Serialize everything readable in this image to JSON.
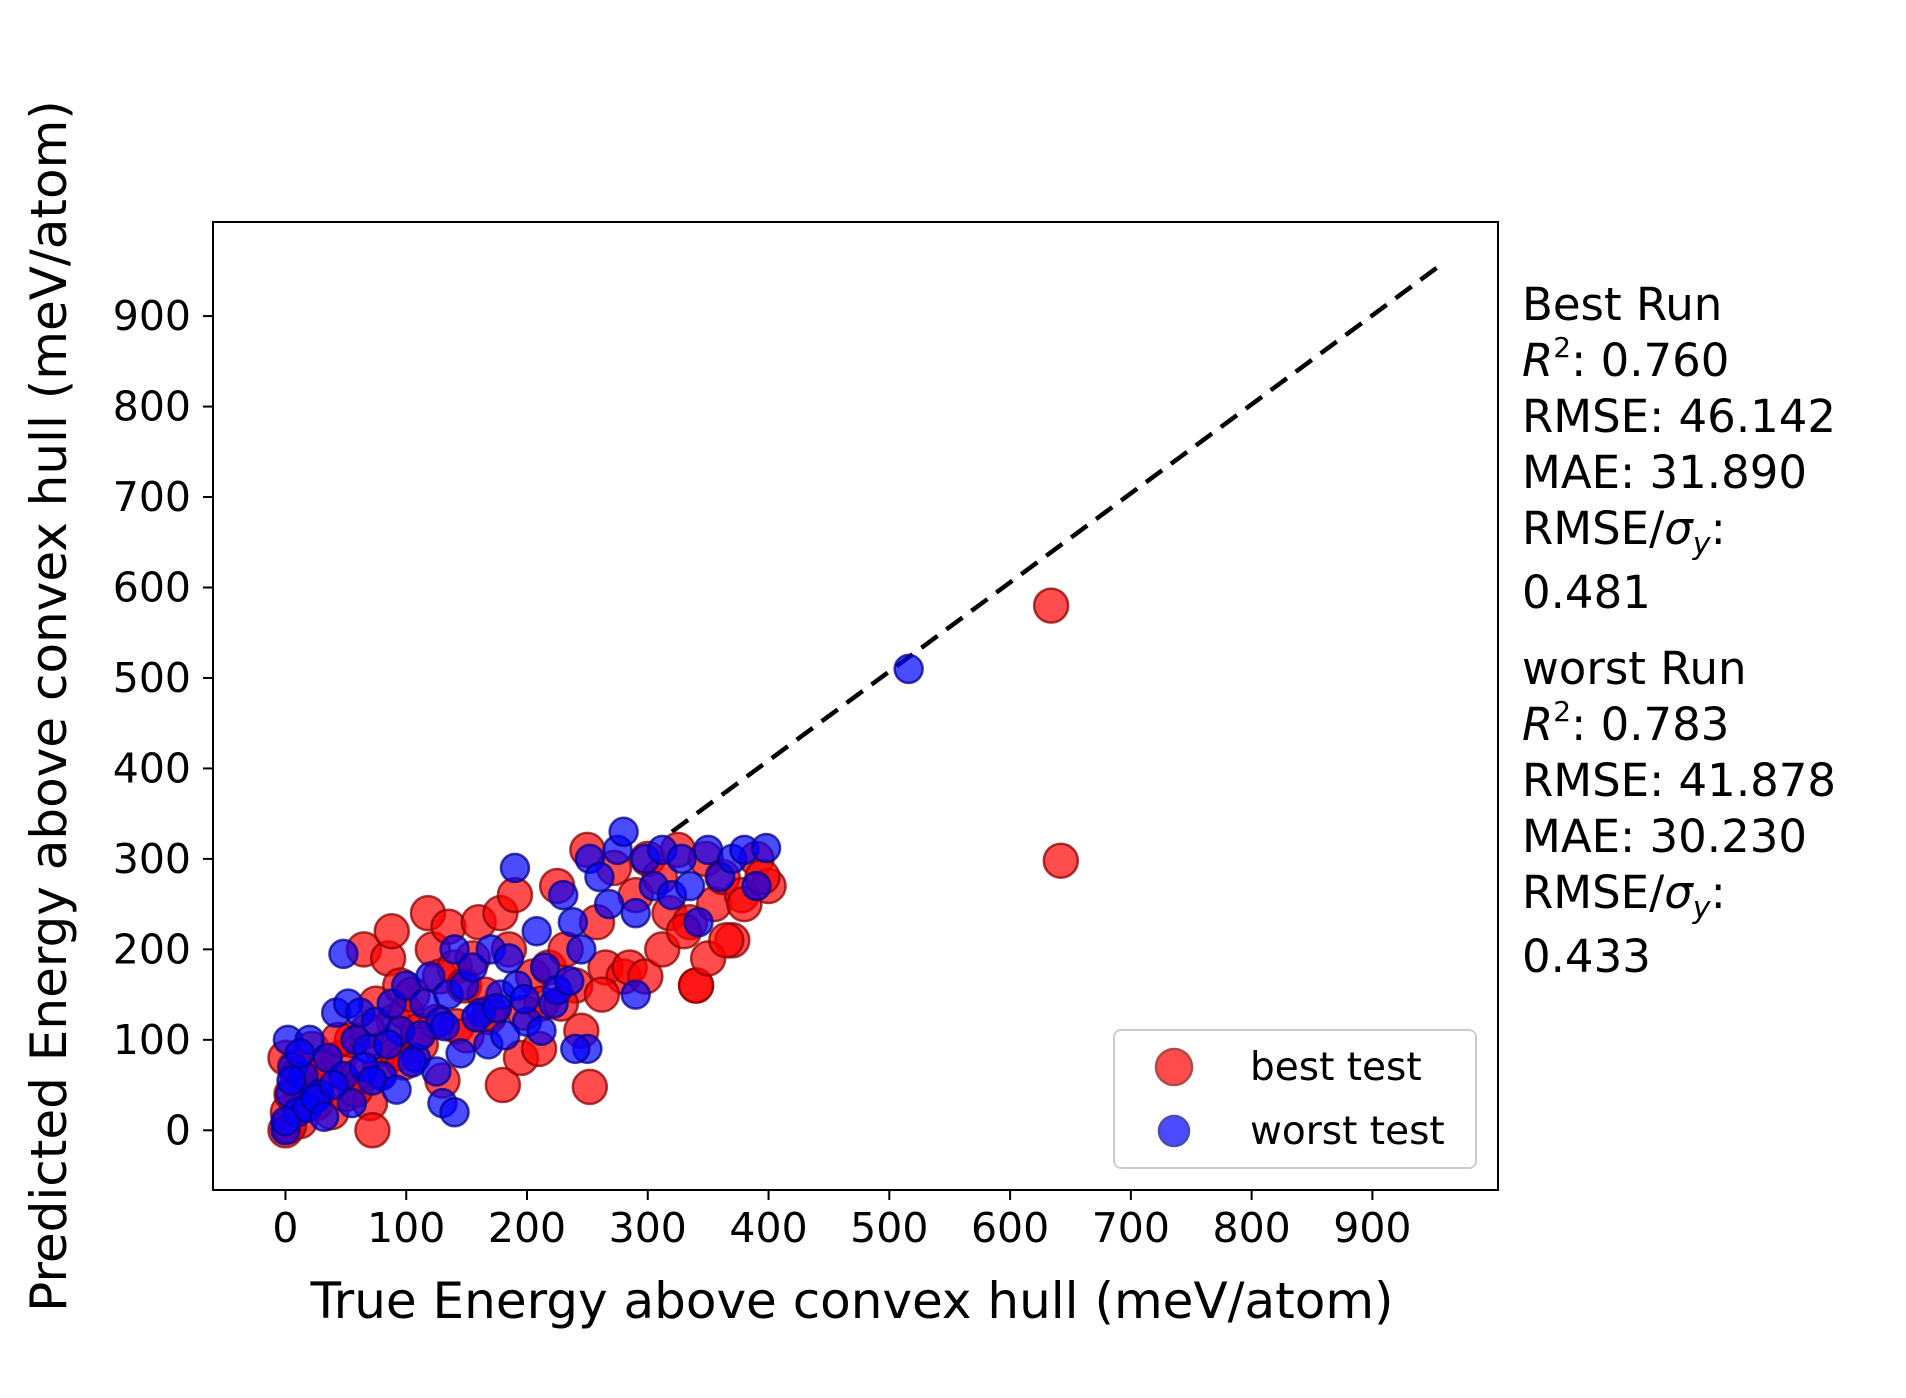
{
  "chart_data": {
    "type": "scatter",
    "xlabel": "True Energy above convex hull (meV/atom)",
    "ylabel": "Predicted Energy above convex hull (meV/atom)",
    "xlim": [
      -60,
      1004
    ],
    "ylim": [
      -66,
      1004
    ],
    "xticks": [
      0,
      100,
      200,
      300,
      400,
      500,
      600,
      700,
      800,
      900
    ],
    "yticks": [
      0,
      100,
      200,
      300,
      400,
      500,
      600,
      700,
      800,
      900
    ],
    "xtick_labels": [
      "0",
      "100",
      "200",
      "300",
      "400",
      "500",
      "600",
      "700",
      "800",
      "900"
    ],
    "ytick_labels": [
      "0",
      "100",
      "200",
      "300",
      "400",
      "500",
      "600",
      "700",
      "800",
      "900"
    ],
    "grid": false,
    "legend_position": "lower-right",
    "reference_line": {
      "style": "dashed",
      "color": "#000000",
      "from": [
        320,
        330
      ],
      "to": [
        955,
        955
      ]
    },
    "series": [
      {
        "name": "best test",
        "color": "#ff0000",
        "edge_color": "#8b0000",
        "alpha": 0.7,
        "x": [
          0,
          2,
          5,
          8,
          12,
          18,
          25,
          30,
          38,
          45,
          50,
          55,
          60,
          65,
          70,
          75,
          80,
          85,
          88,
          90,
          95,
          100,
          105,
          110,
          118,
          122,
          128,
          135,
          140,
          148,
          155,
          160,
          165,
          170,
          178,
          185,
          190,
          198,
          205,
          212,
          218,
          225,
          232,
          240,
          250,
          258,
          265,
          272,
          280,
          290,
          300,
          310,
          318,
          325,
          335,
          340,
          348,
          355,
          362,
          370,
          378,
          390,
          400,
          634,
          642,
          252,
          340,
          0,
          3,
          10,
          22,
          33,
          44,
          58,
          68,
          72,
          78,
          92,
          98,
          112,
          125,
          130,
          142,
          150,
          168,
          180,
          195,
          210,
          228,
          245,
          262,
          285,
          298,
          312,
          330,
          350,
          365,
          380,
          395
        ],
        "y": [
          0,
          20,
          40,
          70,
          10,
          50,
          30,
          60,
          20,
          80,
          40,
          100,
          60,
          200,
          30,
          140,
          90,
          190,
          220,
          120,
          160,
          130,
          150,
          110,
          240,
          200,
          170,
          225,
          180,
          160,
          190,
          230,
          150,
          130,
          240,
          200,
          260,
          130,
          170,
          140,
          180,
          270,
          200,
          160,
          310,
          230,
          180,
          290,
          170,
          260,
          300,
          280,
          240,
          310,
          230,
          160,
          300,
          250,
          280,
          210,
          260,
          300,
          270,
          580,
          298,
          48,
          160,
          80,
          5,
          60,
          90,
          70,
          100,
          45,
          110,
          0,
          65,
          85,
          75,
          95,
          120,
          55,
          115,
          105,
          125,
          50,
          80,
          90,
          140,
          110,
          150,
          180,
          170,
          200,
          220,
          190,
          210,
          250,
          280
        ]
      },
      {
        "name": "worst test",
        "color": "#0000ff",
        "edge_color": "#00008b",
        "alpha": 0.7,
        "x": [
          0,
          2,
          4,
          6,
          10,
          15,
          20,
          28,
          35,
          42,
          48,
          52,
          58,
          62,
          68,
          75,
          80,
          88,
          95,
          100,
          108,
          115,
          120,
          128,
          135,
          140,
          148,
          155,
          162,
          170,
          178,
          185,
          192,
          200,
          208,
          215,
          222,
          230,
          238,
          245,
          252,
          260,
          268,
          275,
          280,
          290,
          298,
          305,
          312,
          320,
          328,
          335,
          342,
          350,
          360,
          370,
          380,
          390,
          398,
          516,
          130,
          140,
          250,
          240,
          290,
          190,
          48,
          0,
          5,
          12,
          18,
          25,
          32,
          40,
          55,
          65,
          72,
          85,
          92,
          105,
          112,
          125,
          132,
          145,
          158,
          168,
          175,
          182,
          198,
          212,
          225,
          235
        ],
        "y": [
          0,
          100,
          40,
          70,
          20,
          60,
          100,
          40,
          80,
          130,
          60,
          140,
          100,
          130,
          90,
          120,
          60,
          140,
          110,
          160,
          80,
          140,
          170,
          120,
          150,
          200,
          160,
          180,
          130,
          200,
          150,
          190,
          160,
          120,
          220,
          180,
          140,
          260,
          230,
          200,
          300,
          280,
          250,
          310,
          330,
          240,
          300,
          270,
          310,
          260,
          300,
          270,
          230,
          310,
          280,
          300,
          310,
          270,
          312,
          510,
          30,
          20,
          90,
          90,
          150,
          290,
          195,
          10,
          55,
          85,
          25,
          35,
          15,
          50,
          30,
          70,
          55,
          95,
          45,
          75,
          105,
          65,
          115,
          85,
          125,
          95,
          135,
          105,
          145,
          110,
          155,
          165
        ]
      }
    ],
    "annotations": {
      "best_run": {
        "title": "Best Run",
        "r2_value": ": 0.760",
        "rmse": "RMSE: 46.142",
        "mae": "MAE: 31.890",
        "rmse_sigma_label": "RMSE/",
        "rmse_sigma_value": "0.481"
      },
      "worst_run": {
        "title": "worst Run",
        "r2_value": ": 0.783",
        "rmse": "RMSE: 41.878",
        "mae": "MAE: 30.230",
        "rmse_sigma_label": "RMSE/",
        "rmse_sigma_value": "0.433"
      }
    }
  }
}
